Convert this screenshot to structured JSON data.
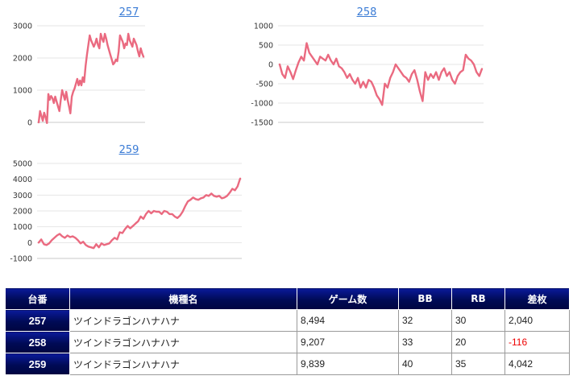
{
  "chart_data": [
    {
      "type": "line",
      "title": "257",
      "ylim": [
        0,
        3000
      ],
      "yticks": [
        0,
        1000,
        2000,
        3000
      ],
      "grid": true,
      "series": [
        {
          "values": [
            0,
            350,
            200,
            50,
            300,
            150,
            -20,
            880,
            700,
            820,
            750,
            600,
            800,
            650,
            500,
            350,
            700,
            1000,
            850,
            700,
            950,
            700,
            500,
            280,
            800,
            950,
            1050,
            1200,
            1350,
            1150,
            1300,
            1150,
            1400,
            1250,
            1750,
            2100,
            2400,
            2700,
            2550,
            2450,
            2350,
            2450,
            2600,
            2400,
            2300,
            2750,
            2600,
            2500,
            2750,
            2600,
            2400,
            2250,
            2100,
            1950,
            1800,
            1850,
            1950,
            1900,
            2200,
            2700,
            2600,
            2500,
            2300,
            2450,
            2400,
            2750,
            2550,
            2450,
            2350,
            2600,
            2500,
            2400,
            2200,
            2050,
            2300,
            2150,
            2040
          ]
        }
      ]
    },
    {
      "type": "line",
      "title": "258",
      "ylim": [
        -1500,
        1000
      ],
      "yticks": [
        -1500,
        -1000,
        -500,
        0,
        500,
        1000
      ],
      "grid": true,
      "series": [
        {
          "values": [
            0,
            -250,
            -350,
            -50,
            -200,
            -380,
            -150,
            50,
            200,
            100,
            550,
            300,
            200,
            100,
            0,
            200,
            150,
            100,
            250,
            100,
            0,
            150,
            -50,
            -100,
            -200,
            -350,
            -250,
            -400,
            -500,
            -350,
            -600,
            -450,
            -600,
            -400,
            -450,
            -600,
            -800,
            -900,
            -1050,
            -500,
            -600,
            -350,
            -200,
            0,
            -100,
            -200,
            -300,
            -350,
            -450,
            -250,
            -150,
            -400,
            -700,
            -950,
            -200,
            -400,
            -250,
            -350,
            -200,
            -400,
            -200,
            -100,
            -300,
            -200,
            -400,
            -500,
            -300,
            -200,
            -150,
            250,
            150,
            100,
            0,
            -200,
            -300,
            -116
          ]
        }
      ]
    },
    {
      "type": "line",
      "title": "259",
      "ylim": [
        -1000,
        5000
      ],
      "yticks": [
        -1000,
        0,
        1000,
        2000,
        3000,
        4000,
        5000
      ],
      "grid": true,
      "series": [
        {
          "values": [
            0,
            200,
            -100,
            -150,
            -50,
            150,
            300,
            450,
            550,
            400,
            300,
            450,
            350,
            400,
            300,
            150,
            -50,
            50,
            -150,
            -250,
            -300,
            -350,
            -100,
            -300,
            -50,
            -150,
            -100,
            -50,
            150,
            300,
            200,
            650,
            600,
            850,
            1050,
            900,
            1050,
            1200,
            1350,
            1650,
            1500,
            1800,
            2000,
            1850,
            2000,
            1950,
            1950,
            1800,
            2000,
            1950,
            1800,
            1800,
            1650,
            1550,
            1700,
            1950,
            2300,
            2600,
            2700,
            2850,
            2750,
            2700,
            2800,
            2850,
            3000,
            2950,
            3100,
            2950,
            2900,
            2950,
            2800,
            2850,
            2950,
            3150,
            3400,
            3300,
            3550,
            4042
          ]
        }
      ]
    }
  ],
  "table": {
    "headers": [
      "台番",
      "機種名",
      "ゲーム数",
      "BB",
      "RB",
      "差枚"
    ],
    "rows": [
      [
        "257",
        "ツインドラゴンハナハナ",
        "8,494",
        "32",
        "30",
        "2,040"
      ],
      [
        "258",
        "ツインドラゴンハナハナ",
        "9,207",
        "33",
        "20",
        "-116"
      ],
      [
        "259",
        "ツインドラゴンハナハナ",
        "9,839",
        "40",
        "35",
        "4,042"
      ]
    ],
    "negative_color": "#ee0000"
  },
  "colors": {
    "line": "#ea6a80",
    "link": "#3a7bd5",
    "header": "#000a55"
  }
}
